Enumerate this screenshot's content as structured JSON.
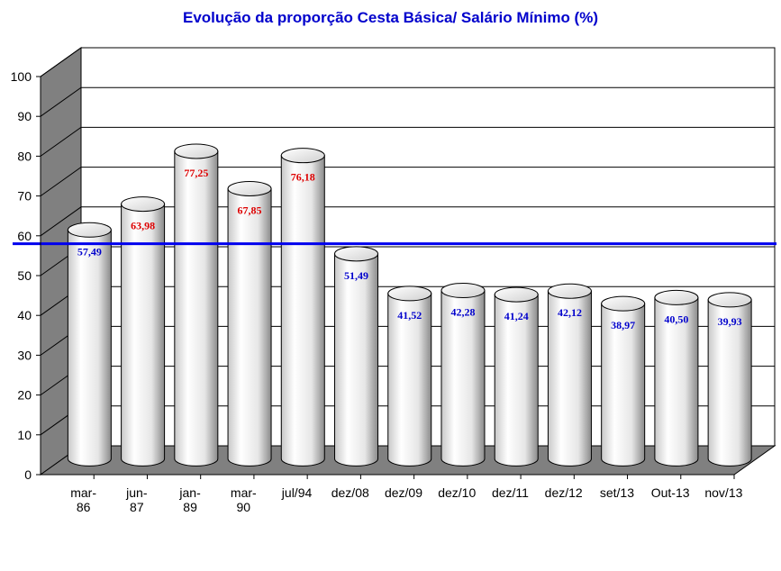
{
  "chart_data": {
    "type": "bar",
    "title": "Evolução da proporção Cesta Básica/ Salário Mínimo (%)",
    "xlabel": "",
    "ylabel": "",
    "ylim": [
      0,
      100
    ],
    "yticks": [
      "0",
      "10",
      "20",
      "30",
      "40",
      "50",
      "60",
      "70",
      "80",
      "90",
      "100"
    ],
    "categories": [
      [
        "mar-",
        "86"
      ],
      [
        "jun-",
        "87"
      ],
      [
        "jan-",
        "89"
      ],
      [
        "mar-",
        "90"
      ],
      [
        "jul/94"
      ],
      [
        "dez/08"
      ],
      [
        "dez/09"
      ],
      [
        "dez/10"
      ],
      [
        "dez/11"
      ],
      [
        "dez/12"
      ],
      [
        "set/13"
      ],
      [
        "Out-13"
      ],
      [
        "nov/13"
      ]
    ],
    "values": [
      57.49,
      63.98,
      77.25,
      67.85,
      76.18,
      51.49,
      41.52,
      42.28,
      41.24,
      42.12,
      38.97,
      40.5,
      39.93
    ],
    "value_labels": [
      "57,49",
      "63,98",
      "77,25",
      "67,85",
      "76,18",
      "51,49",
      "41,52",
      "42,28",
      "41,24",
      "42,12",
      "38,97",
      "40,50",
      "39,93"
    ],
    "label_colors": [
      "#0000cc",
      "#dd0000",
      "#dd0000",
      "#dd0000",
      "#dd0000",
      "#0000cc",
      "#0000cc",
      "#0000cc",
      "#0000cc",
      "#0000cc",
      "#0000cc",
      "#0000cc",
      "#0000cc"
    ],
    "reference_line": {
      "value": 58,
      "color": "#0000ee"
    },
    "grid": true,
    "style": "3d-cylinder"
  }
}
